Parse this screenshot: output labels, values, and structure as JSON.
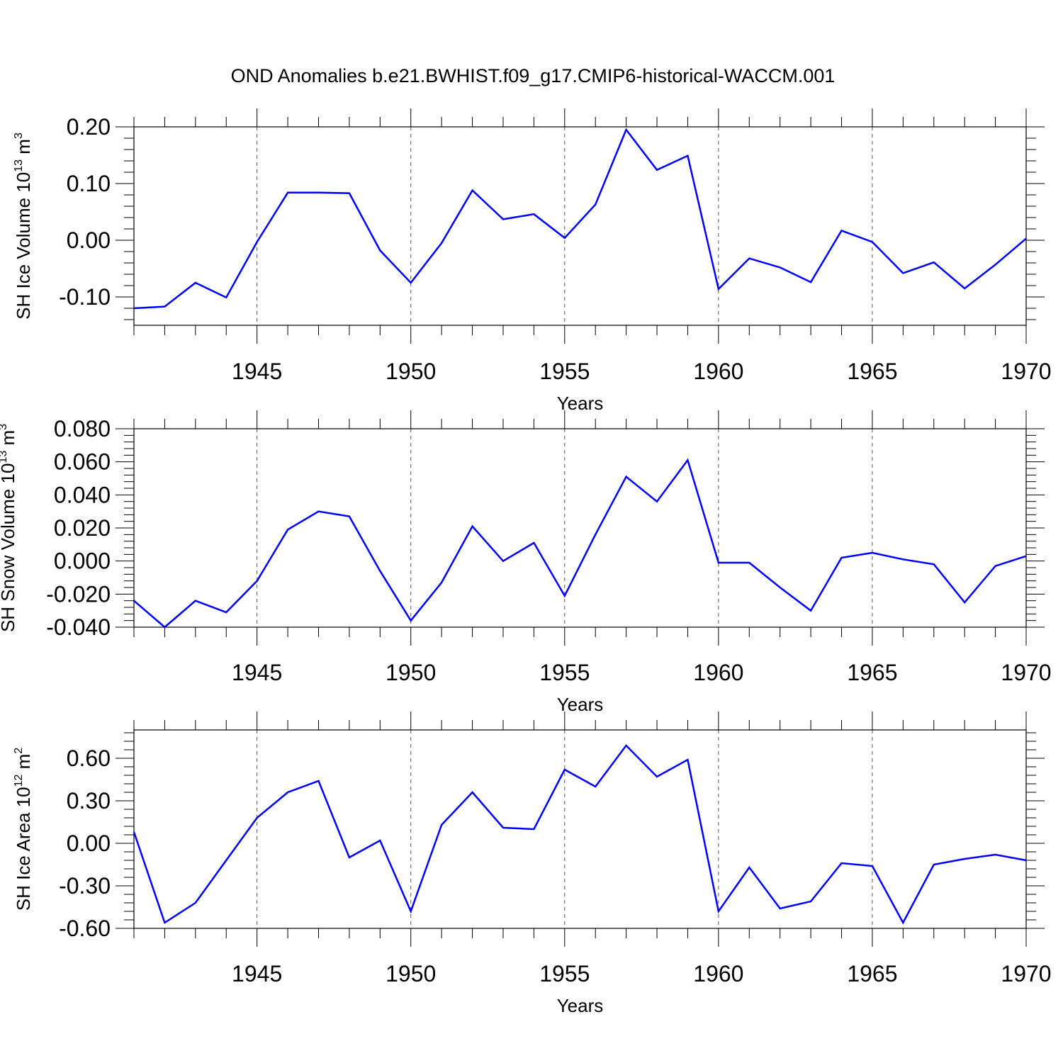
{
  "figure": {
    "title": "OND Anomalies b.e21.BWHIST.f09_g17.CMIP6-historical-WACCM.001"
  },
  "chart_data": [
    {
      "type": "line",
      "ylabel": {
        "base": "SH Ice Volume 10",
        "exp": "13",
        "unit": " m",
        "unit_exp": "3"
      },
      "xlabel": "Years",
      "xlim": [
        1941,
        1970
      ],
      "ylim": [
        -0.15,
        0.2
      ],
      "yticks": [
        0.2,
        0.1,
        0.0,
        -0.1
      ],
      "ytick_labels": [
        "0.20",
        "0.10",
        "0.00",
        "-0.10"
      ],
      "xticks": [
        1945,
        1950,
        1955,
        1960,
        1965,
        1970
      ],
      "xtick_labels": [
        "1945",
        "1950",
        "1955",
        "1960",
        "1965",
        "1970"
      ],
      "grid": "vertical dashed",
      "series": [
        {
          "name": "SH Ice Volume",
          "color": "#0000ff",
          "x": [
            1941,
            1942,
            1943,
            1944,
            1945,
            1946,
            1947,
            1948,
            1949,
            1950,
            1951,
            1952,
            1953,
            1954,
            1955,
            1956,
            1957,
            1958,
            1959,
            1960,
            1961,
            1962,
            1963,
            1964,
            1965,
            1966,
            1967,
            1968,
            1969,
            1970
          ],
          "values": [
            -0.12,
            -0.117,
            -0.075,
            -0.101,
            -0.003,
            0.084,
            0.084,
            0.083,
            -0.018,
            -0.075,
            -0.005,
            0.088,
            0.037,
            0.046,
            0.004,
            0.063,
            0.195,
            0.124,
            0.149,
            -0.086,
            -0.032,
            -0.048,
            -0.074,
            0.017,
            -0.003,
            -0.058,
            -0.039,
            -0.085,
            -0.043,
            0.003
          ]
        }
      ]
    },
    {
      "type": "line",
      "ylabel": {
        "base": "SH Snow Volume 10",
        "exp": "13",
        "unit": " m",
        "unit_exp": "3"
      },
      "xlabel": "Years",
      "xlim": [
        1941,
        1970
      ],
      "ylim": [
        -0.04,
        0.08
      ],
      "yticks": [
        0.08,
        0.06,
        0.04,
        0.02,
        0.0,
        -0.02,
        -0.04
      ],
      "ytick_labels": [
        "0.080",
        "0.060",
        "0.040",
        "0.020",
        "0.000",
        "-0.020",
        "-0.040"
      ],
      "xticks": [
        1945,
        1950,
        1955,
        1960,
        1965,
        1970
      ],
      "xtick_labels": [
        "1945",
        "1950",
        "1955",
        "1960",
        "1965",
        "1970"
      ],
      "grid": "vertical dashed",
      "series": [
        {
          "name": "SH Snow Volume",
          "color": "#0000ff",
          "x": [
            1941,
            1942,
            1943,
            1944,
            1945,
            1946,
            1947,
            1948,
            1949,
            1950,
            1951,
            1952,
            1953,
            1954,
            1955,
            1956,
            1957,
            1958,
            1959,
            1960,
            1961,
            1962,
            1963,
            1964,
            1965,
            1966,
            1967,
            1968,
            1969,
            1970
          ],
          "values": [
            -0.024,
            -0.04,
            -0.024,
            -0.031,
            -0.012,
            0.019,
            0.03,
            0.027,
            -0.006,
            -0.036,
            -0.013,
            0.021,
            0.0,
            0.011,
            -0.021,
            0.016,
            0.051,
            0.036,
            0.061,
            -0.001,
            -0.001,
            -0.016,
            -0.03,
            0.002,
            0.005,
            0.001,
            -0.002,
            -0.025,
            -0.003,
            0.003
          ]
        }
      ]
    },
    {
      "type": "line",
      "ylabel": {
        "base": "SH Ice Area 10",
        "exp": "12",
        "unit": " m",
        "unit_exp": "2"
      },
      "xlabel": "Years",
      "xlim": [
        1941,
        1970
      ],
      "ylim": [
        -0.6,
        0.8
      ],
      "yticks": [
        0.6,
        0.3,
        0.0,
        -0.3,
        -0.6
      ],
      "ytick_labels": [
        "0.60",
        "0.30",
        "0.00",
        "-0.30",
        "-0.60"
      ],
      "xticks": [
        1945,
        1950,
        1955,
        1960,
        1965,
        1970
      ],
      "xtick_labels": [
        "1945",
        "1950",
        "1955",
        "1960",
        "1965",
        "1970"
      ],
      "grid": "vertical dashed",
      "series": [
        {
          "name": "SH Ice Area",
          "color": "#0000ff",
          "x": [
            1941,
            1942,
            1943,
            1944,
            1945,
            1946,
            1947,
            1948,
            1949,
            1950,
            1951,
            1952,
            1953,
            1954,
            1955,
            1956,
            1957,
            1958,
            1959,
            1960,
            1961,
            1962,
            1963,
            1964,
            1965,
            1966,
            1967,
            1968,
            1969,
            1970
          ],
          "values": [
            0.08,
            -0.56,
            -0.42,
            -0.12,
            0.18,
            0.36,
            0.44,
            -0.1,
            0.02,
            -0.48,
            0.13,
            0.36,
            0.11,
            0.1,
            0.52,
            0.4,
            0.69,
            0.47,
            0.59,
            -0.48,
            -0.17,
            -0.46,
            -0.41,
            -0.14,
            -0.16,
            -0.56,
            -0.15,
            -0.11,
            -0.08,
            -0.12
          ]
        }
      ]
    }
  ]
}
